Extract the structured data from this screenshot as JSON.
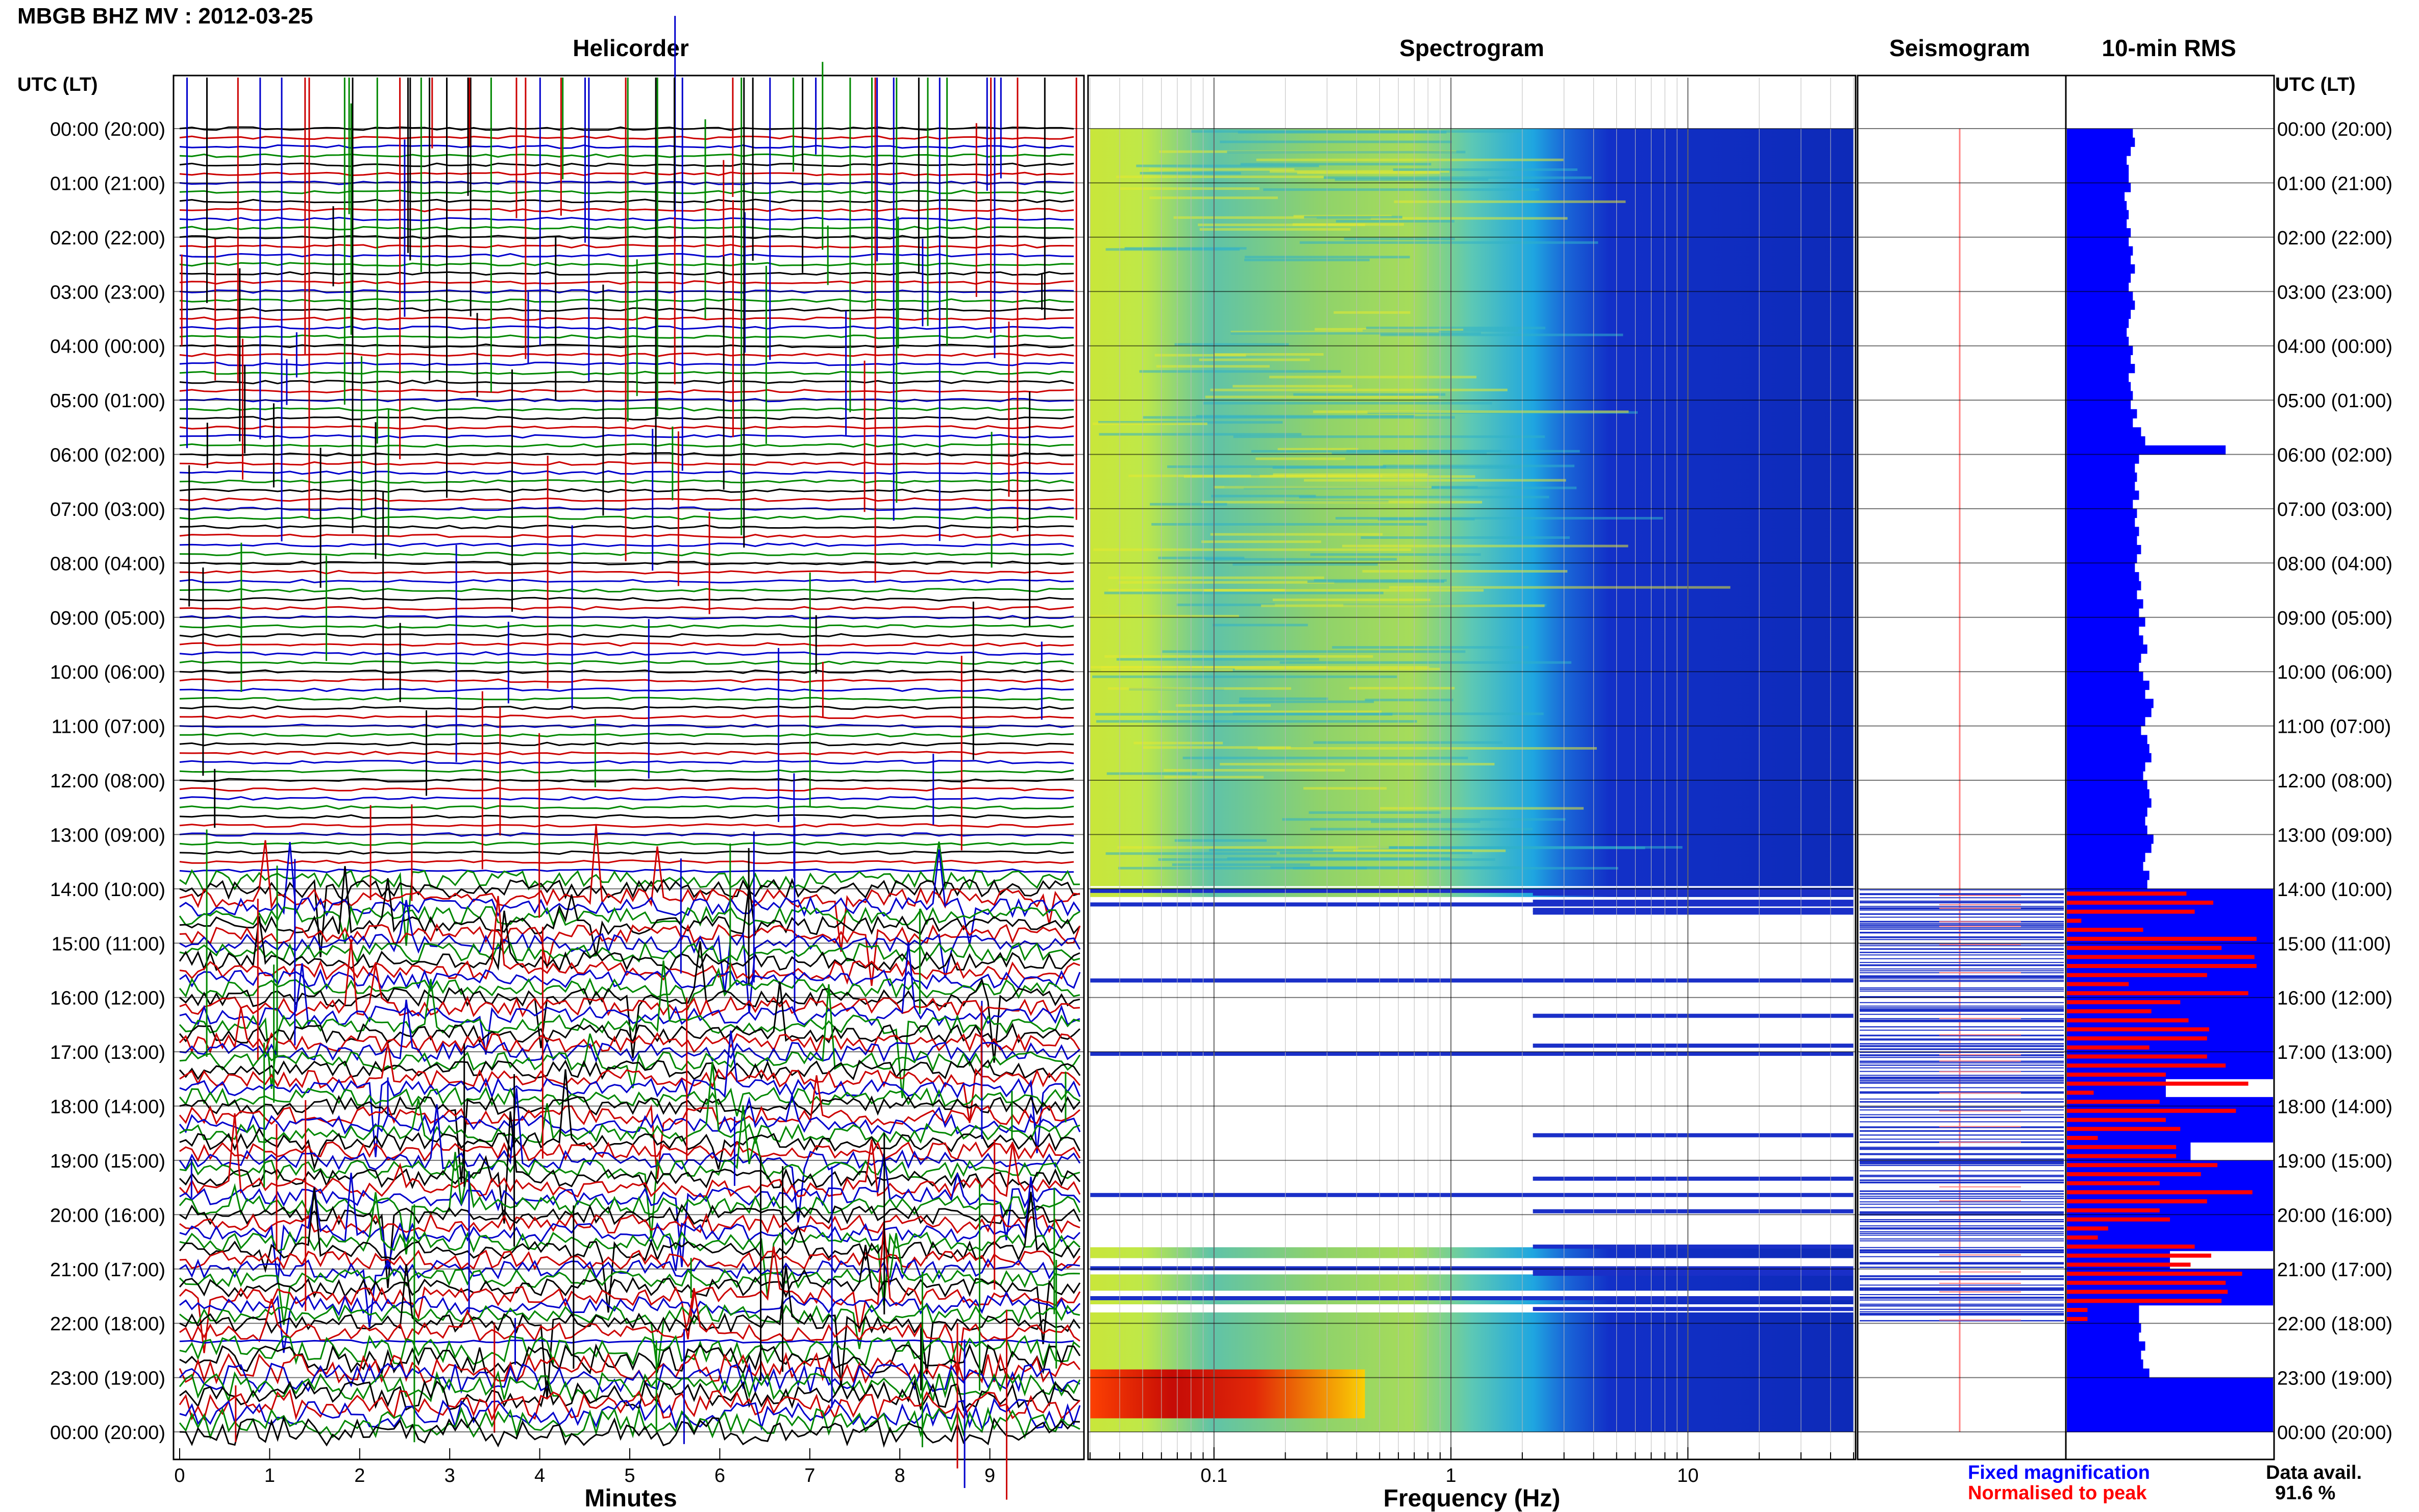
{
  "header": {
    "station_title": "MBGB BHZ MV : 2012-03-25",
    "utc_lt_left": "UTC (LT)",
    "utc_lt_right": "UTC (LT)"
  },
  "panels": {
    "helicorder": "Helicorder",
    "spectrogram": "Spectrogram",
    "seismogram": "Seismogram",
    "rms": "10-min RMS"
  },
  "axes": {
    "minutes_label": "Minutes",
    "frequency_label": "Frequency (Hz)",
    "minute_ticks": [
      "0",
      "1",
      "2",
      "3",
      "4",
      "5",
      "6",
      "7",
      "8",
      "9"
    ],
    "frequency_ticks": [
      "0.1",
      "1",
      "10"
    ]
  },
  "legend": {
    "fixed": "Fixed magnification",
    "normalised": "Normalised to peak",
    "fixed_color": "#0000ff",
    "normalised_color": "#ff0000"
  },
  "data_availability": {
    "label": "Data avail.",
    "value": "91.6 %"
  },
  "time_labels": [
    "00:00 (20:00)",
    "01:00 (21:00)",
    "02:00 (22:00)",
    "03:00 (23:00)",
    "04:00 (00:00)",
    "05:00 (01:00)",
    "06:00 (02:00)",
    "07:00 (03:00)",
    "08:00 (04:00)",
    "09:00 (05:00)",
    "10:00 (06:00)",
    "11:00 (07:00)",
    "12:00 (08:00)",
    "13:00 (09:00)",
    "14:00 (10:00)",
    "15:00 (11:00)",
    "16:00 (12:00)",
    "17:00 (13:00)",
    "18:00 (14:00)",
    "19:00 (15:00)",
    "20:00 (16:00)",
    "21:00 (17:00)",
    "22:00 (18:00)",
    "23:00 (19:00)",
    "00:00 (20:00)"
  ],
  "chart_data": {
    "type": "bar",
    "title": "10-min RMS",
    "description_series": [
      {
        "name": "Fixed magnification",
        "color": "#0000ff"
      },
      {
        "name": "Normalised to peak",
        "color": "#ff0000"
      }
    ],
    "interval_minutes": 10,
    "start_utc": "00:00",
    "fixed_magnification_rms": [
      0.32,
      0.33,
      0.31,
      0.29,
      0.3,
      0.3,
      0.31,
      0.28,
      0.29,
      0.3,
      0.29,
      0.31,
      0.3,
      0.32,
      0.31,
      0.33,
      0.31,
      0.3,
      0.32,
      0.33,
      0.31,
      0.3,
      0.29,
      0.3,
      0.32,
      0.31,
      0.33,
      0.3,
      0.31,
      0.32,
      0.31,
      0.34,
      0.32,
      0.36,
      0.38,
      0.77,
      0.35,
      0.33,
      0.34,
      0.33,
      0.35,
      0.32,
      0.34,
      0.33,
      0.35,
      0.34,
      0.36,
      0.34,
      0.33,
      0.35,
      0.36,
      0.34,
      0.37,
      0.35,
      0.38,
      0.35,
      0.37,
      0.39,
      0.36,
      0.35,
      0.37,
      0.4,
      0.38,
      0.42,
      0.41,
      0.38,
      0.36,
      0.39,
      0.4,
      0.41,
      0.38,
      0.37,
      0.39,
      0.4,
      0.41,
      0.39,
      0.38,
      0.39,
      0.42,
      0.41,
      0.38,
      0.37,
      0.4,
      0.39,
      1.0,
      1.0,
      1.0,
      1.0,
      1.0,
      1.0,
      1.0,
      1.0,
      1.0,
      1.0,
      1.0,
      1.0,
      1.0,
      1.0,
      1.0,
      1.0,
      1.0,
      1.0,
      1.0,
      1.0,
      1.0,
      0.48,
      0.48,
      1.0,
      1.0,
      1.0,
      1.0,
      1.0,
      0.6,
      0.6,
      1.0,
      1.0,
      1.0,
      1.0,
      1.0,
      1.0,
      1.0,
      1.0,
      1.0,
      1.0,
      0.5,
      0.5,
      1.0,
      1.0,
      1.0,
      1.0,
      0.35,
      0.35,
      0.36,
      0.35,
      0.38,
      0.36,
      0.37,
      0.4,
      1.0,
      1.0,
      1.0,
      1.0,
      1.0,
      1.0
    ],
    "normalised_rms": [
      null,
      null,
      null,
      null,
      null,
      null,
      null,
      null,
      null,
      null,
      null,
      null,
      null,
      null,
      null,
      null,
      null,
      null,
      null,
      null,
      null,
      null,
      null,
      null,
      null,
      null,
      null,
      null,
      null,
      null,
      null,
      null,
      null,
      null,
      null,
      null,
      null,
      null,
      null,
      null,
      null,
      null,
      null,
      null,
      null,
      null,
      null,
      null,
      null,
      null,
      null,
      null,
      null,
      null,
      null,
      null,
      null,
      null,
      null,
      null,
      null,
      null,
      null,
      null,
      null,
      null,
      null,
      null,
      null,
      null,
      null,
      null,
      null,
      null,
      null,
      null,
      null,
      null,
      null,
      null,
      null,
      null,
      null,
      null,
      0.58,
      0.71,
      0.62,
      0.07,
      0.37,
      0.92,
      0.75,
      0.91,
      0.92,
      0.68,
      0.3,
      0.88,
      0.55,
      0.41,
      0.59,
      0.69,
      0.68,
      0.4,
      0.68,
      0.77,
      0.48,
      0.88,
      0.13,
      0.45,
      0.82,
      0.48,
      0.55,
      0.15,
      0.53,
      0.53,
      0.73,
      0.65,
      0.45,
      0.9,
      0.68,
      0.45,
      0.5,
      0.2,
      0.15,
      0.62,
      0.7,
      0.6,
      0.85,
      0.77,
      0.78,
      0.75,
      0.1,
      0.1,
      null,
      null,
      null,
      null,
      null,
      null,
      null,
      null,
      null,
      null,
      null,
      null
    ],
    "xlabel": "",
    "ylabel": ""
  }
}
